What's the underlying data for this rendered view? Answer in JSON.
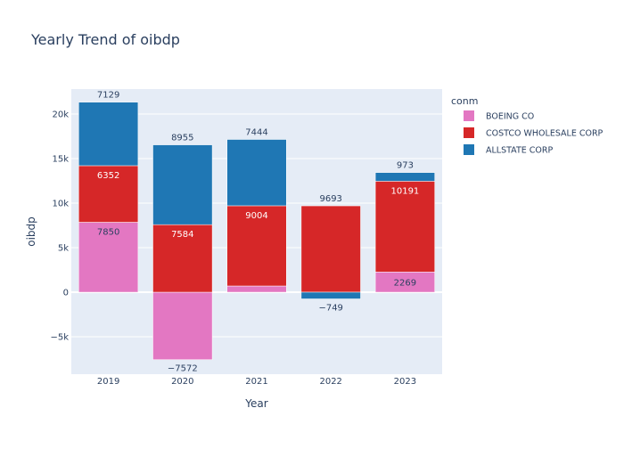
{
  "chart_data": {
    "type": "bar",
    "barmode": "relative",
    "title": "Yearly Trend of oibdp",
    "xlabel": "Year",
    "ylabel": "oibdp",
    "categories": [
      "2019",
      "2020",
      "2021",
      "2022",
      "2023"
    ],
    "ylim": [
      -9200,
      22800
    ],
    "yticks": [
      -5000,
      0,
      5000,
      10000,
      15000,
      20000
    ],
    "ytick_labels": [
      "−5k",
      "0",
      "5k",
      "10k",
      "15k",
      "20k"
    ],
    "grid": true,
    "legend": {
      "title": "conm",
      "position": "top-right"
    },
    "series": [
      {
        "name": "BOEING CO",
        "color": "#e377c2",
        "values": [
          7850,
          -7572,
          700,
          0,
          2269
        ],
        "labels": [
          "7850",
          "−7572",
          "",
          "",
          "2269"
        ]
      },
      {
        "name": "COSTCO WHOLESALE CORP",
        "color": "#d62728",
        "values": [
          6352,
          7584,
          9004,
          9693,
          10191
        ],
        "labels": [
          "6352",
          "7584",
          "9004",
          "9693",
          "10191"
        ]
      },
      {
        "name": "ALLSTATE CORP",
        "color": "#1f77b4",
        "values": [
          7129,
          8955,
          7444,
          -749,
          973
        ],
        "labels": [
          "7129",
          "8955",
          "7444",
          "−749",
          "973"
        ]
      }
    ]
  }
}
